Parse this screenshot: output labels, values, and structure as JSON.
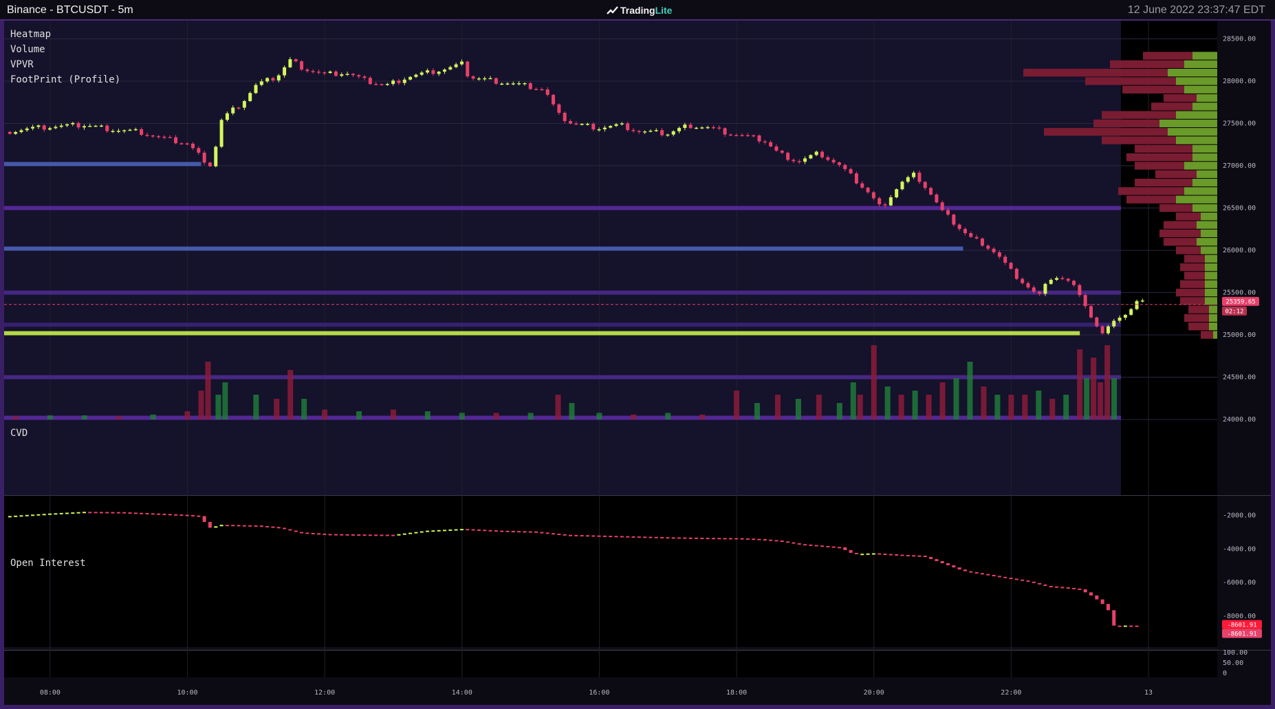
{
  "window": {
    "title": "Binance - BTCUSDT - 5m",
    "brand": "Trading",
    "brand_accent": "Lite",
    "datetime": "12 June 2022 23:37:47 EDT"
  },
  "indicators": {
    "heatmap": "Heatmap",
    "volume": "Volume",
    "vpvr": "VPVR",
    "footprint": "FootPrint (Profile)",
    "cvd": "CVD",
    "open_interest": "Open Interest"
  },
  "colors": {
    "up": "#d4f55e",
    "down": "#e8416a",
    "heatmap_bg": "#15122b",
    "accent_purple": "#4a2a7c"
  },
  "chart_data": [
    {
      "type": "candlestick",
      "title": "",
      "y_ticks": [
        "28500.00",
        "28000.00",
        "27500.00",
        "27000.00",
        "26500.00",
        "26000.00",
        "25500.00",
        "25000.00",
        "24500.00",
        "24000.00"
      ],
      "ylim": [
        24000,
        28650
      ],
      "x_ticks": [
        "08:00",
        "10:00",
        "12:00",
        "14:00",
        "16:00",
        "18:00",
        "20:00",
        "22:00",
        "13"
      ],
      "x_tick_hours": [
        8,
        10,
        12,
        14,
        16,
        18,
        20,
        22,
        24
      ],
      "xlim_hours": [
        7.33,
        24.0
      ],
      "last_price": "25359.65",
      "countdown": "02:12",
      "price_path": [
        [
          7.33,
          27400
        ],
        [
          7.7,
          27440
        ],
        [
          8.0,
          27460
        ],
        [
          8.5,
          27480
        ],
        [
          9.0,
          27420
        ],
        [
          9.3,
          27400
        ],
        [
          9.6,
          27330
        ],
        [
          10.0,
          27260
        ],
        [
          10.2,
          27100
        ],
        [
          10.35,
          27000
        ],
        [
          10.5,
          27550
        ],
        [
          10.8,
          27750
        ],
        [
          11.0,
          27950
        ],
        [
          11.3,
          28050
        ],
        [
          11.5,
          28250
        ],
        [
          11.7,
          28150
        ],
        [
          12.0,
          28080
        ],
        [
          12.3,
          28100
        ],
        [
          12.6,
          28000
        ],
        [
          12.9,
          27950
        ],
        [
          13.2,
          28050
        ],
        [
          13.5,
          28100
        ],
        [
          13.8,
          28150
        ],
        [
          14.0,
          28200
        ],
        [
          14.1,
          28050
        ],
        [
          14.5,
          28000
        ],
        [
          14.9,
          27950
        ],
        [
          15.2,
          27900
        ],
        [
          15.4,
          27600
        ],
        [
          15.6,
          27500
        ],
        [
          16.0,
          27450
        ],
        [
          16.3,
          27480
        ],
        [
          16.6,
          27400
        ],
        [
          17.0,
          27380
        ],
        [
          17.3,
          27480
        ],
        [
          17.6,
          27450
        ],
        [
          17.9,
          27380
        ],
        [
          18.1,
          27350
        ],
        [
          18.4,
          27300
        ],
        [
          18.6,
          27150
        ],
        [
          18.9,
          27050
        ],
        [
          19.2,
          27150
        ],
        [
          19.5,
          27000
        ],
        [
          19.7,
          26850
        ],
        [
          19.9,
          26700
        ],
        [
          20.1,
          26500
        ],
        [
          20.4,
          26800
        ],
        [
          20.6,
          26900
        ],
        [
          20.8,
          26700
        ],
        [
          21.0,
          26450
        ],
        [
          21.2,
          26300
        ],
        [
          21.4,
          26150
        ],
        [
          21.6,
          26080
        ],
        [
          21.8,
          25950
        ],
        [
          22.0,
          25750
        ],
        [
          22.2,
          25600
        ],
        [
          22.4,
          25450
        ],
        [
          22.6,
          25700
        ],
        [
          22.8,
          25650
        ],
        [
          23.0,
          25500
        ],
        [
          23.2,
          25150
        ],
        [
          23.35,
          24980
        ],
        [
          23.5,
          25200
        ],
        [
          23.7,
          25250
        ],
        [
          23.85,
          25400
        ],
        [
          23.95,
          25360
        ]
      ],
      "heatmap_lines": [
        {
          "price": 26500,
          "from_hour": 7.33,
          "to_hour": 24.0,
          "color": "#5a2aa0"
        },
        {
          "price": 26020,
          "from_hour": 7.33,
          "to_hour": 21.3,
          "color": "#4a63b8"
        },
        {
          "price": 25020,
          "from_hour": 7.33,
          "to_hour": 23.0,
          "color": "#c8f04a"
        },
        {
          "price": 25500,
          "from_hour": 7.33,
          "to_hour": 24.0,
          "color": "#4a2a8c"
        },
        {
          "price": 25120,
          "from_hour": 7.33,
          "to_hour": 24.0,
          "color": "#3a2478"
        },
        {
          "price": 24500,
          "from_hour": 7.33,
          "to_hour": 24.0,
          "color": "#4a2a8c"
        },
        {
          "price": 27020,
          "from_hour": 7.33,
          "to_hour": 10.2,
          "color": "#4a63b8"
        },
        {
          "price": 24020,
          "from_hour": 7.33,
          "to_hour": 24.0,
          "color": "#5a2aa0"
        }
      ],
      "vpvr_profile": [
        {
          "price": 28300,
          "sell": 0.12,
          "buy": 0.06
        },
        {
          "price": 28200,
          "sell": 0.18,
          "buy": 0.08
        },
        {
          "price": 28100,
          "sell": 0.35,
          "buy": 0.12
        },
        {
          "price": 28000,
          "sell": 0.22,
          "buy": 0.1
        },
        {
          "price": 27900,
          "sell": 0.15,
          "buy": 0.08
        },
        {
          "price": 27800,
          "sell": 0.08,
          "buy": 0.05
        },
        {
          "price": 27700,
          "sell": 0.1,
          "buy": 0.06
        },
        {
          "price": 27600,
          "sell": 0.18,
          "buy": 0.1
        },
        {
          "price": 27500,
          "sell": 0.16,
          "buy": 0.14
        },
        {
          "price": 27400,
          "sell": 0.3,
          "buy": 0.12
        },
        {
          "price": 27300,
          "sell": 0.18,
          "buy": 0.1
        },
        {
          "price": 27200,
          "sell": 0.14,
          "buy": 0.06
        },
        {
          "price": 27100,
          "sell": 0.16,
          "buy": 0.06
        },
        {
          "price": 27000,
          "sell": 0.12,
          "buy": 0.08
        },
        {
          "price": 26900,
          "sell": 0.1,
          "buy": 0.05
        },
        {
          "price": 26800,
          "sell": 0.14,
          "buy": 0.06
        },
        {
          "price": 26700,
          "sell": 0.16,
          "buy": 0.08
        },
        {
          "price": 26600,
          "sell": 0.12,
          "buy": 0.1
        },
        {
          "price": 26500,
          "sell": 0.08,
          "buy": 0.06
        },
        {
          "price": 26400,
          "sell": 0.06,
          "buy": 0.04
        },
        {
          "price": 26300,
          "sell": 0.08,
          "buy": 0.05
        },
        {
          "price": 26200,
          "sell": 0.1,
          "buy": 0.04
        },
        {
          "price": 26100,
          "sell": 0.08,
          "buy": 0.05
        },
        {
          "price": 26000,
          "sell": 0.06,
          "buy": 0.04
        },
        {
          "price": 25900,
          "sell": 0.05,
          "buy": 0.03
        },
        {
          "price": 25800,
          "sell": 0.06,
          "buy": 0.03
        },
        {
          "price": 25700,
          "sell": 0.05,
          "buy": 0.03
        },
        {
          "price": 25600,
          "sell": 0.06,
          "buy": 0.03
        },
        {
          "price": 25500,
          "sell": 0.07,
          "buy": 0.03
        },
        {
          "price": 25400,
          "sell": 0.06,
          "buy": 0.03
        },
        {
          "price": 25300,
          "sell": 0.05,
          "buy": 0.02
        },
        {
          "price": 25200,
          "sell": 0.06,
          "buy": 0.02
        },
        {
          "price": 25100,
          "sell": 0.05,
          "buy": 0.02
        },
        {
          "price": 25000,
          "sell": 0.03,
          "buy": 0.01
        }
      ]
    },
    {
      "type": "bar",
      "title": "",
      "x_hours": [
        7.5,
        8.0,
        8.5,
        9.0,
        9.5,
        10.0,
        10.2,
        10.3,
        10.45,
        10.55,
        11.0,
        11.3,
        11.5,
        11.7,
        12.0,
        12.5,
        13.0,
        13.5,
        14.0,
        14.5,
        15.0,
        15.4,
        15.6,
        16.0,
        16.5,
        17.0,
        17.5,
        18.0,
        18.3,
        18.6,
        18.9,
        19.2,
        19.5,
        19.7,
        19.8,
        20.0,
        20.2,
        20.4,
        20.6,
        20.8,
        21.0,
        21.2,
        21.4,
        21.6,
        21.8,
        22.0,
        22.2,
        22.4,
        22.6,
        22.8,
        23.0,
        23.1,
        23.2,
        23.3,
        23.4,
        23.5,
        23.6,
        23.7,
        23.8
      ],
      "volumes": [
        0.04,
        0.05,
        0.05,
        0.04,
        0.06,
        0.1,
        0.35,
        0.7,
        0.3,
        0.45,
        0.3,
        0.25,
        0.6,
        0.25,
        0.12,
        0.1,
        0.12,
        0.1,
        0.08,
        0.08,
        0.08,
        0.3,
        0.2,
        0.08,
        0.06,
        0.08,
        0.06,
        0.35,
        0.2,
        0.3,
        0.25,
        0.3,
        0.2,
        0.45,
        0.3,
        0.9,
        0.4,
        0.3,
        0.35,
        0.3,
        0.45,
        0.5,
        0.7,
        0.4,
        0.3,
        0.3,
        0.3,
        0.35,
        0.25,
        0.3,
        0.85,
        0.5,
        0.75,
        0.45,
        0.9,
        0.5,
        0.3,
        0.2,
        0.15
      ],
      "sides": [
        "d",
        "u",
        "u",
        "d",
        "u",
        "d",
        "d",
        "d",
        "u",
        "u",
        "u",
        "d",
        "d",
        "u",
        "d",
        "u",
        "d",
        "u",
        "u",
        "d",
        "u",
        "d",
        "u",
        "u",
        "d",
        "u",
        "d",
        "d",
        "u",
        "d",
        "u",
        "d",
        "u",
        "u",
        "d",
        "d",
        "u",
        "d",
        "u",
        "d",
        "d",
        "u",
        "u",
        "d",
        "u",
        "d",
        "d",
        "u",
        "d",
        "u",
        "d",
        "u",
        "d",
        "d",
        "d",
        "u",
        "d",
        "u",
        "d"
      ]
    },
    {
      "type": "line",
      "title": "",
      "y_ticks": [
        "-2000.00",
        "-4000.00",
        "-6000.00",
        "-8000.00"
      ],
      "ylim": [
        -9600,
        -1400
      ],
      "last_value": "-8601.91",
      "last_value_2": "-8601.91",
      "path": [
        [
          7.33,
          -2050
        ],
        [
          8.0,
          -1880
        ],
        [
          8.5,
          -1780
        ],
        [
          9.0,
          -1800
        ],
        [
          9.5,
          -1880
        ],
        [
          10.0,
          -1970
        ],
        [
          10.2,
          -2050
        ],
        [
          10.3,
          -2760
        ],
        [
          10.5,
          -2550
        ],
        [
          11.0,
          -2600
        ],
        [
          11.3,
          -2700
        ],
        [
          11.6,
          -3000
        ],
        [
          12.0,
          -3100
        ],
        [
          12.5,
          -3130
        ],
        [
          13.0,
          -3150
        ],
        [
          13.5,
          -2900
        ],
        [
          14.0,
          -2800
        ],
        [
          14.5,
          -2900
        ],
        [
          15.0,
          -2950
        ],
        [
          15.5,
          -3150
        ],
        [
          16.0,
          -3200
        ],
        [
          16.5,
          -3250
        ],
        [
          17.0,
          -3300
        ],
        [
          17.5,
          -3330
        ],
        [
          18.0,
          -3350
        ],
        [
          18.3,
          -3400
        ],
        [
          18.6,
          -3500
        ],
        [
          18.9,
          -3700
        ],
        [
          19.2,
          -3800
        ],
        [
          19.5,
          -3900
        ],
        [
          19.7,
          -4300
        ],
        [
          20.0,
          -4250
        ],
        [
          20.4,
          -4350
        ],
        [
          20.7,
          -4400
        ],
        [
          21.0,
          -4850
        ],
        [
          21.3,
          -5300
        ],
        [
          21.6,
          -5500
        ],
        [
          21.9,
          -5700
        ],
        [
          22.2,
          -5900
        ],
        [
          22.5,
          -6200
        ],
        [
          22.8,
          -6300
        ],
        [
          23.0,
          -6400
        ],
        [
          23.2,
          -6850
        ],
        [
          23.4,
          -7500
        ],
        [
          23.5,
          -8600
        ],
        [
          23.7,
          -8550
        ],
        [
          23.9,
          -8600
        ]
      ]
    },
    {
      "type": "line",
      "title": "",
      "y_ticks": [
        "100.00",
        "50.00",
        "0"
      ],
      "ylim": [
        0,
        100
      ]
    }
  ]
}
